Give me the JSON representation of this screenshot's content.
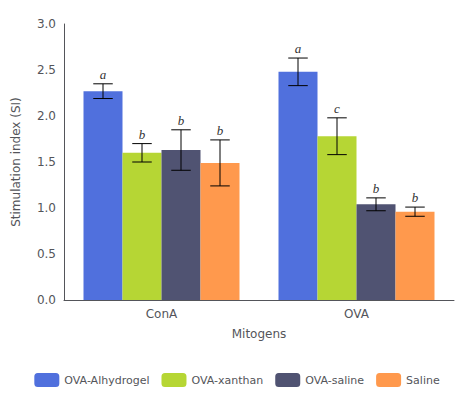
{
  "chart_data": {
    "type": "bar",
    "categories": [
      "ConA",
      "OVA"
    ],
    "series": [
      {
        "name": "OVA-Alhydrogel",
        "values": [
          2.27,
          2.48
        ],
        "errors": [
          0.08,
          0.15
        ],
        "letters": [
          "a",
          "a"
        ]
      },
      {
        "name": "OVA-xanthan",
        "values": [
          1.6,
          1.78
        ],
        "errors": [
          0.1,
          0.2
        ],
        "letters": [
          "b",
          "c"
        ]
      },
      {
        "name": "OVA-saline",
        "values": [
          1.63,
          1.04
        ],
        "errors": [
          0.22,
          0.07
        ],
        "letters": [
          "b",
          "b"
        ]
      },
      {
        "name": "Saline",
        "values": [
          1.49,
          0.96
        ],
        "errors": [
          0.25,
          0.05
        ],
        "letters": [
          "b",
          "b"
        ]
      }
    ],
    "xlabel": "Mitogens",
    "ylabel": "Stimulation index (SI)",
    "ylim": [
      0.0,
      3.0
    ],
    "yticks": [
      {
        "value": 0,
        "label": "0.0"
      },
      0.5,
      {
        "value": 1,
        "label": "1.0"
      },
      1.5,
      {
        "value": 2,
        "label": "2.0"
      },
      2.5,
      {
        "value": 3,
        "label": "3.0"
      }
    ],
    "grid": false,
    "legend": "bottom"
  }
}
